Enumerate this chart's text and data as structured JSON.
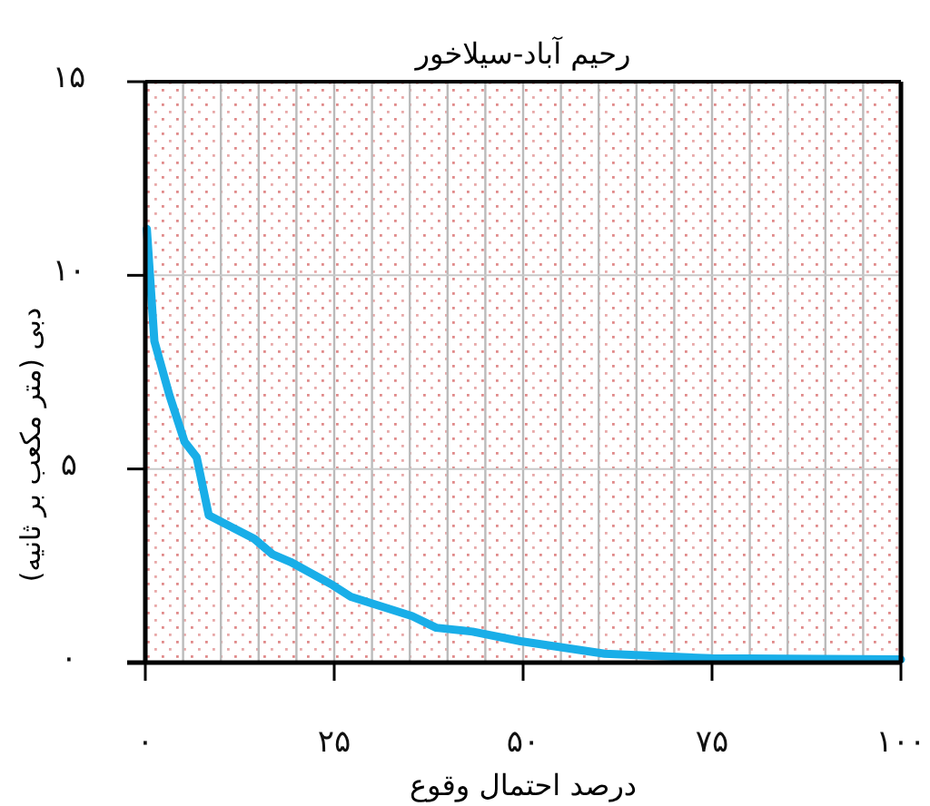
{
  "chart_data": {
    "type": "line",
    "title": "رحیم آباد-سیلاخور",
    "xlabel": "درصد احتمال وقوع",
    "ylabel": "دبی (متر مکعب بر ثانیه)",
    "x": [
      0.2,
      1.2,
      3.2,
      5.2,
      6.8,
      8.4,
      14.4,
      16.8,
      19.2,
      24.8,
      27.2,
      35.3,
      38.5,
      43.3,
      49.7,
      60.8,
      74.9,
      100
    ],
    "series": [
      {
        "color": "#19aee8",
        "values": [
          11.2,
          8.3,
          6.9,
          5.7,
          5.3,
          3.8,
          3.2,
          2.8,
          2.6,
          2.0,
          1.7,
          1.2,
          0.9,
          0.8,
          0.55,
          0.23,
          0.11,
          0.08
        ]
      }
    ],
    "xlim": [
      0,
      100
    ],
    "ylim": [
      0,
      15
    ],
    "xticks": [
      {
        "value": 0,
        "label": "۰"
      },
      {
        "value": 25,
        "label": "۲۵"
      },
      {
        "value": 50,
        "label": "۵۰"
      },
      {
        "value": 75,
        "label": "۷۵"
      },
      {
        "value": 100,
        "label": "۱۰۰"
      }
    ],
    "yticks": [
      {
        "value": 0,
        "label": "۰"
      },
      {
        "value": 5,
        "label": "۵"
      },
      {
        "value": 10,
        "label": "۱۰"
      },
      {
        "value": 15,
        "label": "۱۵"
      }
    ],
    "grid": true,
    "marker": "none",
    "line_style": "solid"
  }
}
